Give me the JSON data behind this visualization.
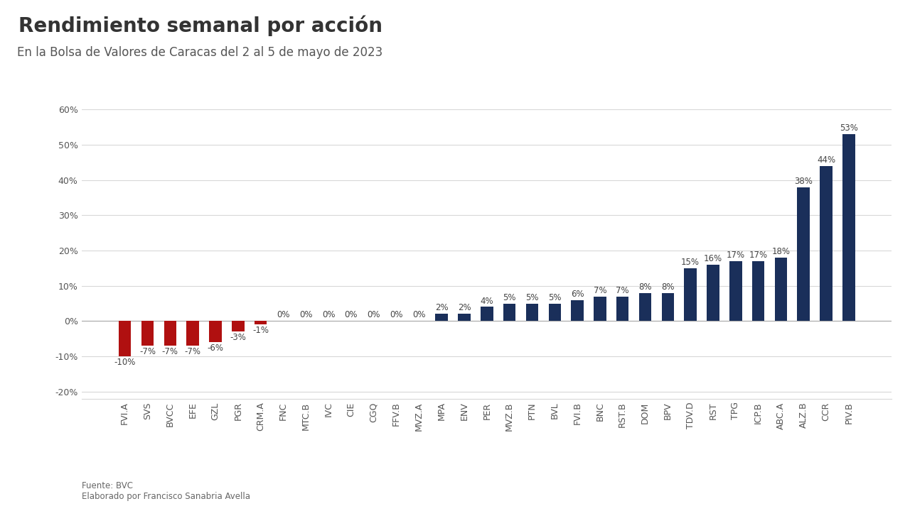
{
  "title": "Rendimiento semanal por acción",
  "subtitle": "En la Bolsa de Valores de Caracas del 2 al 5 de mayo de 2023",
  "categories": [
    "FVI.A",
    "SVS",
    "BVCC",
    "EFE",
    "GZL",
    "PGR",
    "CRM.A",
    "FNC",
    "MTC.B",
    "IVC",
    "CIE",
    "CGQ",
    "FFV.B",
    "MVZ.A",
    "MPA",
    "ENV",
    "PER",
    "MVZ.B",
    "PTN",
    "BVL",
    "FVI.B",
    "BNC",
    "RST.B",
    "DOM",
    "BPV",
    "TDV.D",
    "RST",
    "TPG",
    "ICP.B",
    "ABC.A",
    "ALZ.B",
    "CCR",
    "PIV.B"
  ],
  "values": [
    -10,
    -7,
    -7,
    -7,
    -6,
    -3,
    -1,
    0,
    0,
    0,
    0,
    0,
    0,
    0,
    2,
    2,
    4,
    5,
    5,
    5,
    6,
    7,
    7,
    8,
    8,
    15,
    16,
    17,
    17,
    18,
    38,
    44,
    53
  ],
  "neg_color": "#b01010",
  "pos_color": "#1a2f5a",
  "background_color": "#ffffff",
  "ylim": [
    -22,
    65
  ],
  "yticks": [
    -20,
    -10,
    0,
    10,
    20,
    30,
    40,
    50,
    60
  ],
  "grid_color": "#d8d8d8",
  "title_fontsize": 20,
  "subtitle_fontsize": 12,
  "label_fontsize": 8.5,
  "tick_fontsize": 9,
  "footer_line1": "Fuente: BVC",
  "footer_line2": "Elaborado por Francisco Sanabria Avella"
}
